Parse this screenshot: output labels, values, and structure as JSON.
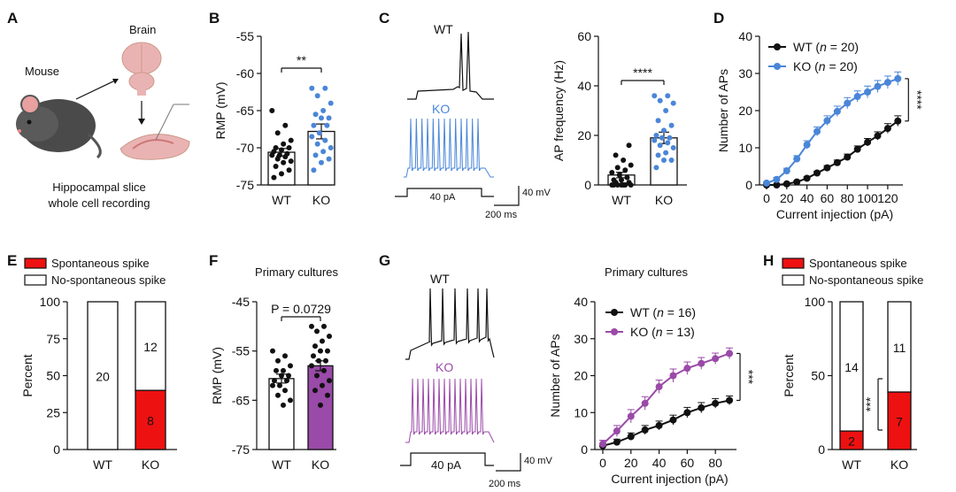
{
  "colors": {
    "black": "#111111",
    "blue": "#4a86d8",
    "red": "#ee1111",
    "purple": "#9a4aa8",
    "brain": "#eab3b3",
    "mouse": "#555555"
  },
  "panel_letters": [
    "A",
    "B",
    "C",
    "D",
    "E",
    "F",
    "G",
    "H"
  ],
  "panelA": {
    "mouse": "Mouse",
    "brain": "Brain",
    "caption1": "Hippocampal slice",
    "caption2": "whole cell recording"
  },
  "panelC": {
    "wt": "WT",
    "ko": "KO",
    "step": "40 pA",
    "scale_v": "40 mV",
    "scale_t": "200 ms"
  },
  "panelG": {
    "wt": "WT",
    "ko": "KO",
    "step": "40 pA",
    "scale_v": "40 mV",
    "scale_t": "200 ms"
  },
  "chart_data": [
    {
      "id": "B",
      "type": "bar",
      "ylabel": "RMP (mV)",
      "yticks": [
        -55,
        -60,
        -65,
        -70,
        -75
      ],
      "ylim": [
        -75,
        -55
      ],
      "categories": [
        "WT",
        "KO"
      ],
      "values": [
        -70.6,
        -67.8
      ],
      "errors": [
        0.5,
        1.0
      ],
      "significance": "**",
      "points": [
        [
          -65,
          -67,
          -68,
          -69,
          -69.5,
          -70,
          -70,
          -70.3,
          -70.5,
          -70.8,
          -71,
          -71,
          -71.2,
          -71.5,
          -71.8,
          -72,
          -72.5,
          -73,
          -73.5,
          -74
        ],
        [
          -62,
          -62,
          -63,
          -64,
          -65,
          -65.5,
          -66,
          -66,
          -67,
          -67,
          -68,
          -68.5,
          -69,
          -69.5,
          -70,
          -70.5,
          -71,
          -71.5,
          -72,
          -73
        ]
      ]
    },
    {
      "id": "C",
      "type": "bar",
      "ylabel": "AP frequency (Hz)",
      "yticks": [
        0,
        20,
        40,
        60
      ],
      "ylim": [
        0,
        60
      ],
      "categories": [
        "WT",
        "KO"
      ],
      "values": [
        4,
        19
      ],
      "errors": [
        1.1,
        2.3
      ],
      "significance": "****",
      "points": [
        [
          0,
          0,
          0,
          0,
          0,
          1,
          1,
          2,
          2,
          3,
          4,
          5,
          6,
          7,
          8,
          10,
          12,
          16,
          0,
          0
        ],
        [
          36,
          36,
          34,
          33,
          30,
          26,
          24,
          22,
          20,
          19,
          19,
          18,
          17,
          16,
          15,
          13,
          12,
          10,
          10,
          7
        ]
      ]
    },
    {
      "id": "D",
      "type": "line",
      "ylabel": "Number of APs",
      "xlabel": "Current injection (pA)",
      "xticks": [
        0,
        20,
        40,
        60,
        80,
        100,
        120
      ],
      "yticks": [
        0,
        10,
        20,
        30,
        40
      ],
      "xlim": [
        0,
        135
      ],
      "ylim": [
        0,
        40
      ],
      "significance": "****",
      "x": [
        0,
        10,
        20,
        30,
        40,
        50,
        60,
        70,
        80,
        90,
        100,
        110,
        120,
        130
      ],
      "series": [
        {
          "name": "WT",
          "n": "20",
          "values": [
            0,
            0,
            0.3,
            0.8,
            1.8,
            3.2,
            4.6,
            6,
            7.5,
            9.6,
            11.5,
            13.2,
            15.2,
            17.2
          ],
          "errors": [
            0.2,
            0.2,
            0.2,
            0.3,
            0.4,
            0.5,
            0.6,
            0.7,
            0.8,
            0.9,
            1,
            1.1,
            1.3,
            1.4
          ]
        },
        {
          "name": "KO",
          "n": "20",
          "values": [
            0.5,
            1.5,
            3.8,
            7,
            10.8,
            14.4,
            17.3,
            19.8,
            22,
            23.8,
            25,
            26.5,
            27.6,
            28.6
          ],
          "errors": [
            0.3,
            0.5,
            0.7,
            0.9,
            1.1,
            1.2,
            1.3,
            1.4,
            1.5,
            1.5,
            1.6,
            1.6,
            1.7,
            1.8
          ]
        }
      ]
    },
    {
      "id": "E",
      "type": "bar",
      "stacked": true,
      "ylabel": "Percent",
      "yticks": [
        0,
        25,
        50,
        75,
        100
      ],
      "ylim": [
        0,
        100
      ],
      "legend": [
        "Spontaneous spike",
        "No-spontaneous spike"
      ],
      "categories": [
        "WT",
        "KO"
      ],
      "spontaneous": [
        0,
        8
      ],
      "no_spontaneous": [
        20,
        12
      ],
      "totals": [
        20,
        20
      ],
      "label_wt": "20",
      "label_ko_top": "12",
      "label_ko_bottom": "8"
    },
    {
      "id": "F",
      "type": "bar",
      "title": "Primary cultures",
      "ylabel": "RMP (mV)",
      "yticks": [
        -45,
        -55,
        -65,
        -75
      ],
      "ylim": [
        -75,
        -45
      ],
      "categories": [
        "WT",
        "KO"
      ],
      "values": [
        -60.6,
        -58
      ],
      "errors": [
        0.9,
        1.0
      ],
      "significance": "P = 0.0729",
      "points": [
        [
          -55,
          -56,
          -57,
          -58,
          -59,
          -59,
          -60,
          -60,
          -61,
          -61,
          -62,
          -62,
          -63,
          -64,
          -65,
          -66
        ],
        [
          -50,
          -50,
          -51,
          -52,
          -53,
          -54,
          -55,
          -55,
          -56,
          -57,
          -57,
          -58,
          -59,
          -60,
          -61,
          -62,
          -63,
          -64,
          -66
        ]
      ]
    },
    {
      "id": "G",
      "type": "line",
      "title": "Primary cultures",
      "ylabel": "Number of APs",
      "xlabel": "Current injection (pA)",
      "xticks": [
        0,
        20,
        40,
        60,
        80
      ],
      "yticks": [
        0,
        10,
        20,
        30,
        40
      ],
      "xlim": [
        0,
        95
      ],
      "ylim": [
        0,
        40
      ],
      "significance": "***",
      "x": [
        0,
        10,
        20,
        30,
        40,
        50,
        60,
        70,
        80,
        90
      ],
      "series": [
        {
          "name": "WT",
          "n": "16",
          "values": [
            1,
            2,
            3.5,
            5.3,
            6.5,
            8,
            10,
            11.3,
            12.5,
            13.3
          ],
          "errors": [
            0.5,
            0.8,
            1,
            1.2,
            1.2,
            1.3,
            1.4,
            1.4,
            1.3,
            1.2
          ]
        },
        {
          "name": "KO",
          "n": "13",
          "values": [
            1.5,
            5,
            9,
            12.5,
            17,
            20,
            22,
            23.3,
            24.6,
            26
          ],
          "errors": [
            1,
            1.5,
            1.8,
            1.8,
            1.8,
            1.8,
            1.7,
            1.6,
            1.5,
            1.5
          ]
        }
      ]
    },
    {
      "id": "H",
      "type": "bar",
      "stacked": true,
      "ylabel": "Percent",
      "yticks": [
        0,
        50,
        100
      ],
      "ylim": [
        0,
        100
      ],
      "significance": "***",
      "legend": [
        "Spontaneous spike",
        "No-spontaneous spike"
      ],
      "categories": [
        "WT",
        "KO"
      ],
      "spontaneous": [
        2,
        7
      ],
      "no_spontaneous": [
        14,
        11
      ],
      "totals": [
        16,
        18
      ],
      "label_wt_top": "14",
      "label_wt_bottom": "2",
      "label_ko_top": "11",
      "label_ko_bottom": "7"
    }
  ]
}
